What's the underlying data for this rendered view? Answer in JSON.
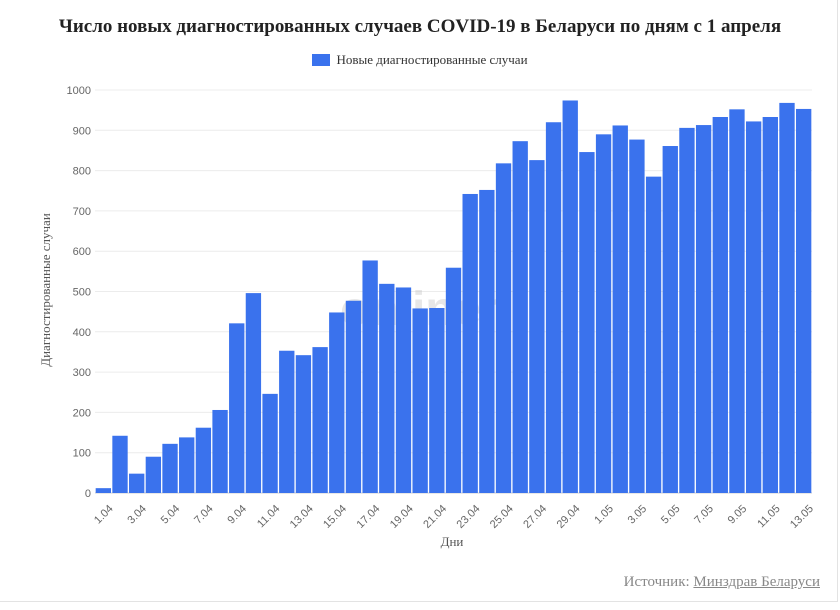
{
  "chart_data": {
    "type": "bar",
    "title": "Число новых диагностированных случаев COVID-19 в Беларуси по дням с 1 апреля",
    "xlabel": "Дни",
    "ylabel": "Диагностированные случаи",
    "ylim": [
      0,
      1000
    ],
    "yticks": [
      "0",
      "100",
      "200",
      "300",
      "400",
      "500",
      "600",
      "700",
      "800",
      "900",
      "1000"
    ],
    "grid": true,
    "legend_position": "top-center",
    "color": "#3a72ed",
    "categories": [
      "1.04",
      "2.04",
      "3.04",
      "4.04",
      "5.04",
      "6.04",
      "7.04",
      "8.04",
      "9.04",
      "10.04",
      "11.04",
      "12.04",
      "13.04",
      "14.04",
      "15.04",
      "16.04",
      "17.04",
      "18.04",
      "19.04",
      "20.04",
      "21.04",
      "22.04",
      "23.04",
      "24.04",
      "25.04",
      "26.04",
      "27.04",
      "28.04",
      "29.04",
      "30.04",
      "1.05",
      "2.05",
      "3.05",
      "4.05",
      "5.05",
      "6.05",
      "7.05",
      "8.05",
      "9.05",
      "10.05",
      "11.05",
      "12.05",
      "13.05"
    ],
    "series": [
      {
        "name": "Новые диагностированные случаи",
        "values": [
          12,
          142,
          48,
          90,
          122,
          138,
          162,
          206,
          421,
          496,
          246,
          353,
          342,
          362,
          448,
          477,
          577,
          519,
          510,
          458,
          459,
          559,
          742,
          752,
          818,
          873,
          826,
          920,
          974,
          846,
          890,
          912,
          877,
          785,
          861,
          906,
          913,
          933,
          952,
          922,
          933,
          968,
          953
        ]
      }
    ],
    "visible_tick_labels": [
      "1.04",
      "3.04",
      "5.04",
      "7.04",
      "9.04",
      "11.04",
      "13.04",
      "15.04",
      "17.04",
      "19.04",
      "21.04",
      "23.04",
      "25.04",
      "27.04",
      "29.04",
      "1.05",
      "3.05",
      "5.05",
      "7.05",
      "9.05",
      "11.05",
      "13.05"
    ]
  },
  "watermark": "onliner",
  "source": {
    "prefix": "Источник: ",
    "link_text": "Минздрав Беларуси"
  }
}
